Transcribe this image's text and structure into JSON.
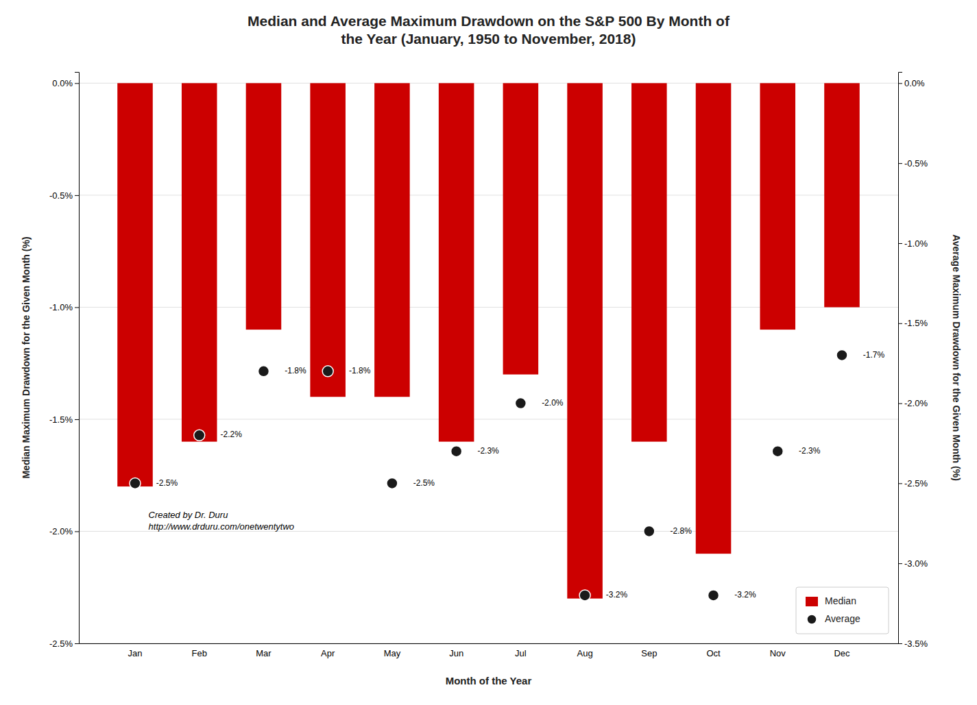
{
  "chart_data": {
    "type": "bar",
    "title": "Median and Average Maximum Drawdown on the S&P 500 By Month of\nthe Year (January, 1950 to November, 2018)",
    "xlabel": "Month of the Year",
    "ylabel": "Median Maximum Drawdown for the Given Month (%)",
    "y2label": "Average Maximum Drawdown for the Given Month (%)",
    "categories": [
      "Jan",
      "Feb",
      "Mar",
      "Apr",
      "May",
      "Jun",
      "Jul",
      "Aug",
      "Sep",
      "Oct",
      "Nov",
      "Dec"
    ],
    "series": [
      {
        "name": "Median",
        "type": "bar",
        "color": "#cc0000",
        "values": [
          -1.8,
          -1.6,
          -1.1,
          -1.4,
          -1.4,
          -1.6,
          -1.3,
          -2.3,
          -1.6,
          -2.1,
          -1.1,
          -1.0
        ]
      },
      {
        "name": "Average",
        "type": "scatter",
        "axis": "y2",
        "color": "#1a1a1a",
        "marker": "circle",
        "data_labels": true,
        "values": [
          -2.5,
          -2.2,
          -1.8,
          -1.8,
          -2.5,
          -2.3,
          -2.0,
          -3.2,
          -2.8,
          -3.2,
          -2.3,
          -1.7
        ],
        "value_labels": [
          "-2.5%",
          "-2.2%",
          "-1.8%",
          "-1.8%",
          "-2.5%",
          "-2.3%",
          "-2.0%",
          "-3.2%",
          "-2.8%",
          "-3.2%",
          "-2.3%",
          "-1.7%"
        ]
      }
    ],
    "ylim": [
      -2.5,
      0.05
    ],
    "yticks": [
      {
        "value": 0.0,
        "label": "0.0%"
      },
      {
        "value": -0.5,
        "label": "-0.5%"
      },
      {
        "value": -1.0,
        "label": "-1.0%"
      },
      {
        "value": -1.5,
        "label": "-1.5%"
      },
      {
        "value": -2.0,
        "label": "-2.0%"
      },
      {
        "value": -2.5,
        "label": "-2.5%"
      }
    ],
    "y2lim": [
      -3.5,
      0.07
    ],
    "y2ticks": [
      {
        "value": 0.0,
        "label": "0.0%"
      },
      {
        "value": -0.5,
        "label": "-0.5%"
      },
      {
        "value": -1.0,
        "label": "-1.0%"
      },
      {
        "value": -1.5,
        "label": "-1.5%"
      },
      {
        "value": -2.0,
        "label": "-2.0%"
      },
      {
        "value": -2.5,
        "label": "-2.5%"
      },
      {
        "value": -3.0,
        "label": "-3.0%"
      },
      {
        "value": -3.5,
        "label": "-3.5%"
      }
    ],
    "grid": true,
    "legend": "lower right",
    "annotations": [
      "Created by Dr. Duru",
      "http://www.drduru.com/onetwentytwo"
    ]
  }
}
